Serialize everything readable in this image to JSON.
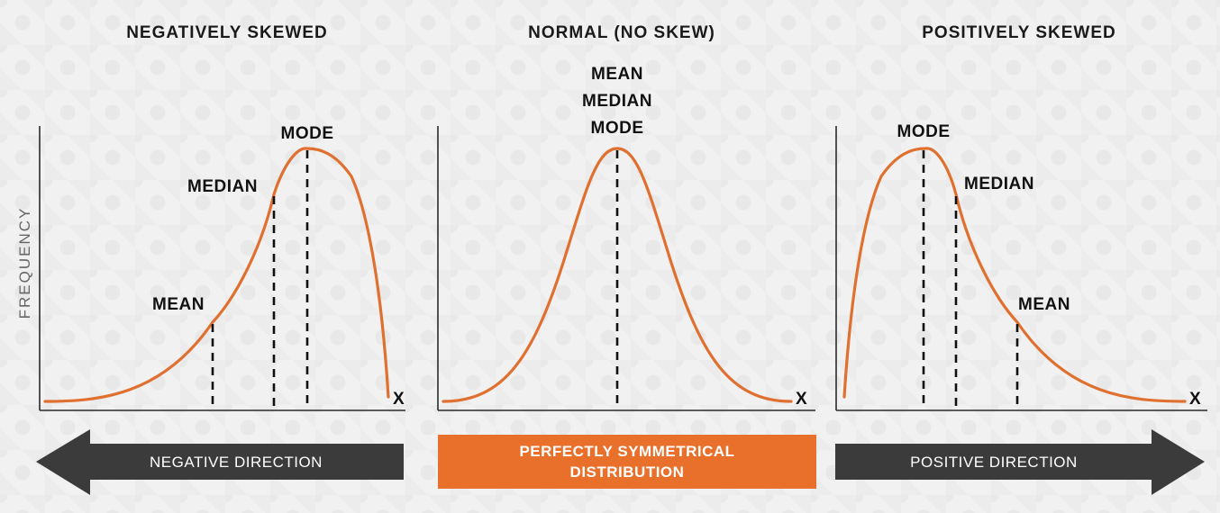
{
  "panels": {
    "negative": {
      "title": "NEGATIVELY SKEWED",
      "mode": "MODE",
      "median": "MEDIAN",
      "mean": "MEAN",
      "x_label": "X",
      "y_label": "FREQUENCY"
    },
    "normal": {
      "title": "NORMAL (NO SKEW)",
      "mean": "MEAN",
      "median": "MEDIAN",
      "mode": "MODE",
      "x_label": "X"
    },
    "positive": {
      "title": "POSITIVELY SKEWED",
      "mode": "MODE",
      "median": "MEDIAN",
      "mean": "MEAN",
      "x_label": "X"
    }
  },
  "bottom": {
    "negative_arrow": "NEGATIVE DIRECTION",
    "center_box_line1": "PERFECTLY SYMMETRICAL",
    "center_box_line2": "DISTRIBUTION",
    "positive_arrow": "POSITIVE DIRECTION"
  },
  "colors": {
    "curve": "#e07030",
    "center_box": "#e8702a",
    "arrows": "#3b3b3b",
    "background": "#f1f1f1"
  }
}
